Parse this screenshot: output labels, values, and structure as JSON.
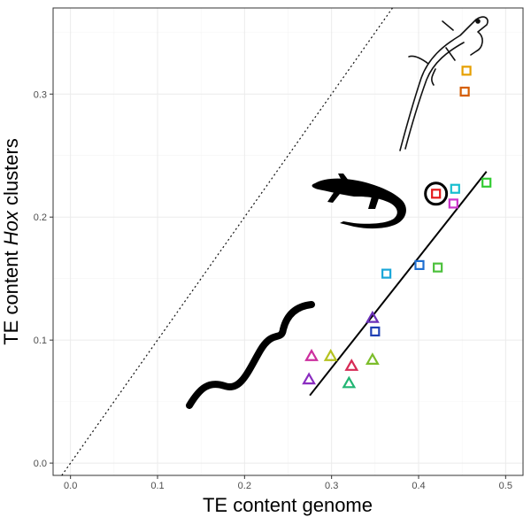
{
  "chart_data": {
    "type": "scatter",
    "title": "",
    "xlabel": "TE content genome",
    "ylabel_parts": [
      "TE content ",
      "Hox",
      " clusters"
    ],
    "xlim": [
      -0.02,
      0.52
    ],
    "ylim": [
      -0.01,
      0.37
    ],
    "x_ticks": [
      0.0,
      0.1,
      0.2,
      0.3,
      0.4,
      0.5
    ],
    "x_tick_labels": [
      "0.0",
      "0.1",
      "0.2",
      "0.3",
      "0.4",
      "0.5"
    ],
    "y_ticks": [
      0.0,
      0.1,
      0.2,
      0.3
    ],
    "y_tick_labels": [
      "0.0",
      "0.1",
      "0.2",
      "0.3"
    ],
    "grid": true,
    "legend": "none",
    "reference_line": {
      "style": "dotted",
      "slope": 1,
      "intercept": 0
    },
    "regression_line": {
      "x": [
        0.275,
        0.478
      ],
      "y": [
        0.055,
        0.237
      ]
    },
    "highlighted_point": {
      "x": 0.42,
      "y": 0.219
    },
    "groups": [
      {
        "icon": "anole-lizard-outline-silhouette",
        "marker": "square",
        "points": [
          {
            "x": 0.455,
            "y": 0.319,
            "color": "#E69F00"
          },
          {
            "x": 0.453,
            "y": 0.302,
            "color": "#D55E00"
          }
        ]
      },
      {
        "icon": "lizard-silhouette",
        "marker": "square",
        "points": [
          {
            "x": 0.42,
            "y": 0.219,
            "color": "#E41A1C"
          },
          {
            "x": 0.442,
            "y": 0.223,
            "color": "#17BECF"
          },
          {
            "x": 0.44,
            "y": 0.211,
            "color": "#CC33CC"
          },
          {
            "x": 0.478,
            "y": 0.228,
            "color": "#33CC33"
          },
          {
            "x": 0.363,
            "y": 0.154,
            "color": "#1AA7D9"
          },
          {
            "x": 0.401,
            "y": 0.161,
            "color": "#1F6FD1"
          },
          {
            "x": 0.422,
            "y": 0.159,
            "color": "#4CC13C"
          },
          {
            "x": 0.35,
            "y": 0.107,
            "color": "#1F3FB4"
          }
        ]
      },
      {
        "icon": "snake-silhouette",
        "marker": "triangle",
        "points": [
          {
            "x": 0.347,
            "y": 0.118,
            "color": "#6A2FB8"
          },
          {
            "x": 0.277,
            "y": 0.087,
            "color": "#CC2E9E"
          },
          {
            "x": 0.299,
            "y": 0.087,
            "color": "#B5C21F"
          },
          {
            "x": 0.323,
            "y": 0.079,
            "color": "#D62A55"
          },
          {
            "x": 0.347,
            "y": 0.084,
            "color": "#7CBD2A"
          },
          {
            "x": 0.274,
            "y": 0.068,
            "color": "#8A2CC0"
          },
          {
            "x": 0.32,
            "y": 0.065,
            "color": "#22B573"
          }
        ]
      }
    ]
  }
}
